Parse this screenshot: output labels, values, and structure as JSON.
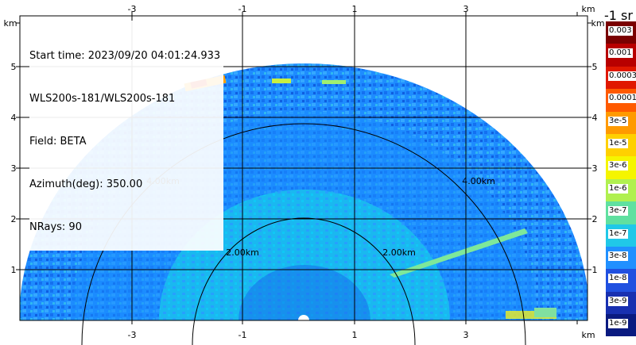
{
  "info": {
    "start_time": "Start time: 2023/09/20 04:01:24.933",
    "instrument": "WLS200s-181/WLS200s-181",
    "field": "Field: BETA",
    "azimuth": "Azimuth(deg): 350.00",
    "nrays": "NRays: 90"
  },
  "axes": {
    "x_unit": "km",
    "y_unit": "km",
    "x_ticks": [
      "-3",
      "-1",
      "1",
      "3"
    ],
    "y_ticks": [
      "1",
      "2",
      "3",
      "4",
      "5"
    ],
    "range_rings": [
      "2.00km",
      "4.00km"
    ]
  },
  "colorbar": {
    "title": "-1 sr",
    "labels": [
      "0.003",
      "0.001",
      "0.0003",
      "0.0001",
      "3e-5",
      "1e-5",
      "3e-6",
      "1e-6",
      "3e-7",
      "1e-7",
      "3e-8",
      "1e-8",
      "3e-9",
      "1e-9"
    ],
    "colors": [
      "#7a0000",
      "#b80000",
      "#e01800",
      "#ff5a00",
      "#ff9a00",
      "#ffd000",
      "#f5f500",
      "#b0f050",
      "#60e0a0",
      "#20c8e8",
      "#2090ff",
      "#2050e0",
      "#1830b0",
      "#0a1a80"
    ]
  }
}
